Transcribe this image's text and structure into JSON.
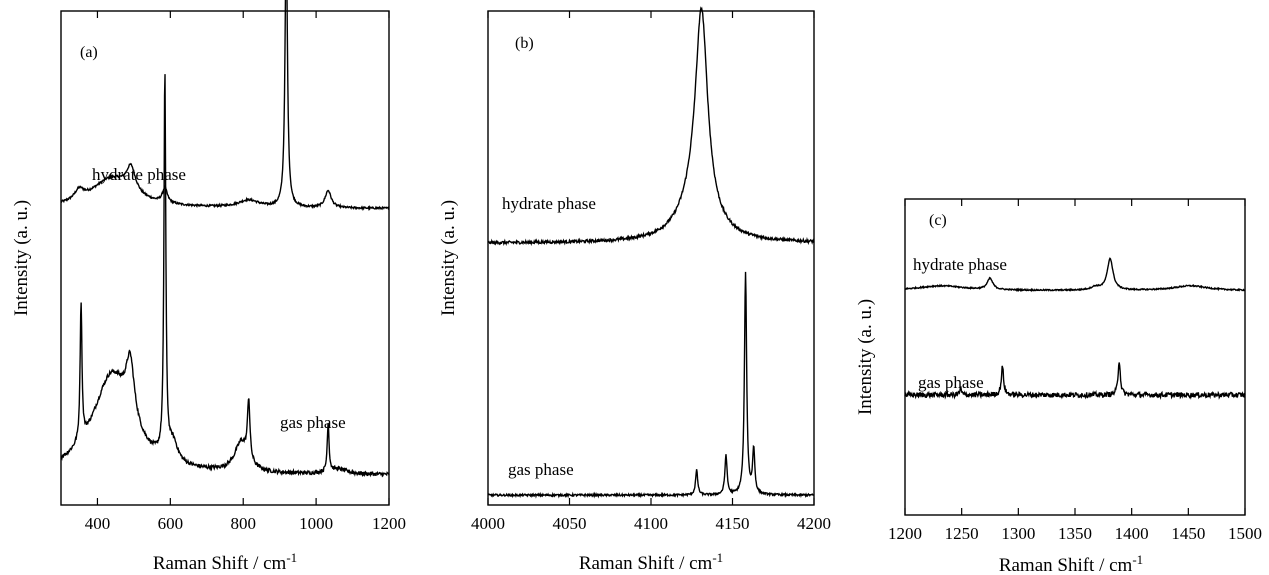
{
  "chart_data": [
    {
      "type": "line",
      "panel_label": "(a)",
      "xlabel": "Raman Shift / cm",
      "xlabel_superscript": "-1",
      "ylabel": "Intensity (a. u.)",
      "xlim": [
        300,
        1200
      ],
      "xticks": [
        400,
        600,
        800,
        1000,
        1200
      ],
      "yticks_shown": false,
      "series": [
        {
          "name": "hydrate phase",
          "baseline": 0.6,
          "noise": 0.002,
          "peaks": [
            {
              "center": 350,
              "height": 0.02,
              "width": 15
            },
            {
              "center": 440,
              "height": 0.06,
              "width": 70
            },
            {
              "center": 492,
              "height": 0.05,
              "width": 15
            },
            {
              "center": 585,
              "height": 0.03,
              "width": 8
            },
            {
              "center": 815,
              "height": 0.015,
              "width": 35
            },
            {
              "center": 918,
              "height": 0.55,
              "width": 4
            },
            {
              "center": 1033,
              "height": 0.035,
              "width": 10
            }
          ]
        },
        {
          "name": "gas phase",
          "baseline": 0.06,
          "noise": 0.004,
          "peaks": [
            {
              "center": 355,
              "height": 0.28,
              "width": 3
            },
            {
              "center": 440,
              "height": 0.2,
              "width": 65
            },
            {
              "center": 490,
              "height": 0.12,
              "width": 14
            },
            {
              "center": 585,
              "height": 0.78,
              "width": 3
            },
            {
              "center": 608,
              "height": 0.04,
              "width": 15
            },
            {
              "center": 795,
              "height": 0.06,
              "width": 22
            },
            {
              "center": 815,
              "height": 0.12,
              "width": 4
            },
            {
              "center": 1033,
              "height": 0.1,
              "width": 3
            },
            {
              "center": 1060,
              "height": 0.01,
              "width": 30
            }
          ]
        }
      ]
    },
    {
      "type": "line",
      "panel_label": "(b)",
      "xlabel": "Raman Shift / cm",
      "xlabel_superscript": "-1",
      "ylabel": "Intensity (a. u.)",
      "xlim": [
        4000,
        4200
      ],
      "xticks": [
        4000,
        4050,
        4100,
        4150,
        4200
      ],
      "yticks_shown": false,
      "series": [
        {
          "name": "hydrate phase",
          "baseline": 0.53,
          "noise": 0.003,
          "peaks": [
            {
              "center": 4131,
              "height": 0.4,
              "width": 4.5
            },
            {
              "center": 4128,
              "height": 0.08,
              "width": 12
            }
          ]
        },
        {
          "name": "gas phase",
          "baseline": 0.02,
          "noise": 0.002,
          "peaks": [
            {
              "center": 4128,
              "height": 0.05,
              "width": 0.8
            },
            {
              "center": 4146,
              "height": 0.08,
              "width": 0.8
            },
            {
              "center": 4158,
              "height": 0.45,
              "width": 0.8
            },
            {
              "center": 4163,
              "height": 0.09,
              "width": 0.8
            }
          ]
        }
      ]
    },
    {
      "type": "line",
      "panel_label": "(c)",
      "xlabel": "Raman Shift / cm",
      "xlabel_superscript": "-1",
      "ylabel": "Intensity (a. u.)",
      "xlim": [
        1200,
        1500
      ],
      "xticks": [
        1200,
        1250,
        1300,
        1350,
        1400,
        1450,
        1500
      ],
      "yticks_shown": false,
      "series": [
        {
          "name": "hydrate phase",
          "baseline": 0.71,
          "noise": 0.002,
          "peaks": [
            {
              "center": 1275,
              "height": 0.035,
              "width": 3
            },
            {
              "center": 1232,
              "height": 0.015,
              "width": 25
            },
            {
              "center": 1381,
              "height": 0.1,
              "width": 3
            },
            {
              "center": 1368,
              "height": 0.01,
              "width": 5
            },
            {
              "center": 1452,
              "height": 0.015,
              "width": 18
            }
          ]
        },
        {
          "name": "gas phase",
          "baseline": 0.38,
          "noise": 0.008,
          "peaks": [
            {
              "center": 1286,
              "height": 0.09,
              "width": 1.2
            },
            {
              "center": 1389,
              "height": 0.11,
              "width": 1.2
            },
            {
              "center": 1249,
              "height": 0.02,
              "width": 1
            }
          ]
        }
      ]
    }
  ]
}
